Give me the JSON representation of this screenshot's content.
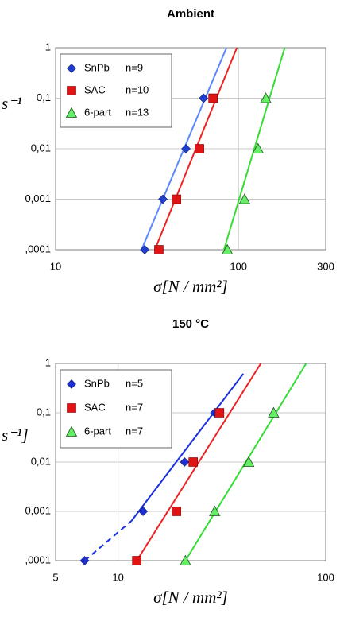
{
  "chart_data": [
    {
      "type": "scatter",
      "title": "Ambient",
      "x_label": "σ[N / mm²]",
      "y_label": "s⁻¹",
      "xscale": "log",
      "yscale": "log",
      "grid": true,
      "legend": "upper left",
      "xlim": [
        10,
        300
      ],
      "xticks": [
        10,
        100,
        300
      ],
      "ylim": [
        0.0001,
        1
      ],
      "yticks": [
        {
          "value": 0.0001,
          "label": ",0001"
        },
        {
          "value": 0.001,
          "label": "0,001"
        },
        {
          "value": 0.01,
          "label": "0,01"
        },
        {
          "value": 0.1,
          "label": "0,1"
        },
        1
      ],
      "series": [
        {
          "name": "SnPb",
          "count_label": "n=9",
          "marker": "diamond",
          "color": "#1f3fd0",
          "line_color": "#5a86ff",
          "x": [
            30.7,
            38.6,
            51.6,
            64.4
          ],
          "values": [
            0.0001,
            0.001,
            0.01,
            0.1
          ],
          "fit": {
            "x": [
              29.5,
              86
            ],
            "values": [
              0.0001,
              1
            ]
          }
        },
        {
          "name": "SAC",
          "count_label": "n=10",
          "marker": "square",
          "color": "#e01414",
          "line_color": "#ee2222",
          "x": [
            36.7,
            45.8,
            61.2,
            72.6
          ],
          "values": [
            0.0001,
            0.001,
            0.01,
            0.1
          ],
          "fit": {
            "x": [
              34.9,
              98
            ],
            "values": [
              0.0001,
              1
            ]
          }
        },
        {
          "name": "6-part",
          "count_label": "n=13",
          "marker": "triangle",
          "color": "#66ee66",
          "line_color": "#33dd33",
          "x": [
            86.9,
            108,
            128,
            141
          ],
          "values": [
            0.0001,
            0.001,
            0.01,
            0.1
          ],
          "fit": {
            "x": [
              83.3,
              179
            ],
            "values": [
              0.0001,
              1
            ]
          }
        }
      ]
    },
    {
      "type": "scatter",
      "title": "150 °C",
      "x_label": "σ[N / mm²]",
      "y_label": "s⁻¹]",
      "xscale": "log",
      "yscale": "log",
      "grid": true,
      "legend": "upper left",
      "xlim": [
        5,
        100
      ],
      "xticks": [
        5,
        10,
        100
      ],
      "ylim": [
        0.0001,
        1
      ],
      "yticks": [
        {
          "value": 0.0001,
          "label": ",0001"
        },
        {
          "value": 0.001,
          "label": "0,001"
        },
        {
          "value": 0.01,
          "label": "0,01"
        },
        {
          "value": 0.1,
          "label": "0,1"
        },
        1
      ],
      "series": [
        {
          "name": "SnPb",
          "count_label": "n=5",
          "marker": "diamond",
          "color": "#1f2fd0",
          "line_color": "#1a2fe0",
          "x": [
            6.9,
            13.2,
            20.9,
            29.2
          ],
          "values": [
            0.0001,
            0.001,
            0.01,
            0.1
          ],
          "fit": {
            "x": [
              11.6,
              40.1
            ],
            "values": [
              0.00064,
              0.62
            ]
          },
          "fit_dashed": {
            "x": [
              6.9,
              11.6
            ],
            "values": [
              0.0001,
              0.00064
            ]
          }
        },
        {
          "name": "SAC",
          "count_label": "n=7",
          "marker": "square",
          "color": "#e01414",
          "line_color": "#ee2222",
          "x": [
            12.3,
            19.1,
            23.0,
            30.8
          ],
          "values": [
            0.0001,
            0.001,
            0.01,
            0.1
          ],
          "fit": {
            "x": [
              12.3,
              48.7
            ],
            "values": [
              0.0001,
              1
            ]
          }
        },
        {
          "name": "6-part",
          "count_label": "n=7",
          "marker": "triangle",
          "color": "#66ee66",
          "line_color": "#33dd33",
          "x": [
            21.1,
            29.2,
            42.6,
            56.1
          ],
          "values": [
            0.0001,
            0.001,
            0.01,
            0.1
          ],
          "fit": {
            "x": [
              21.1,
              80.5
            ],
            "values": [
              0.0001,
              1
            ]
          }
        }
      ]
    }
  ]
}
